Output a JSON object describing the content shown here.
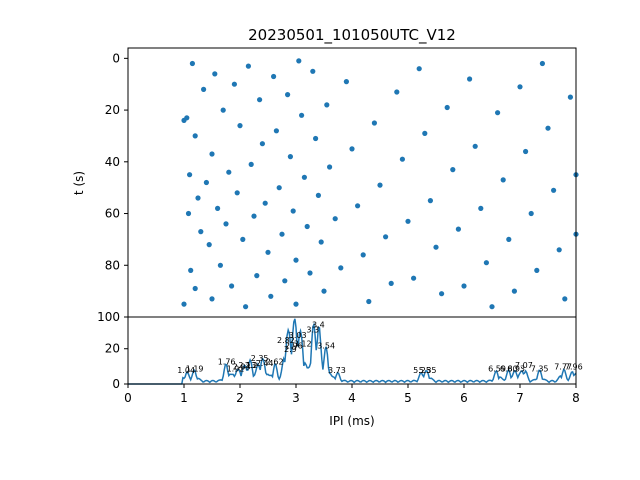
{
  "chart_data": [
    {
      "type": "scatter",
      "title": "20230501_101050UTC_V12",
      "xlabel": "",
      "ylabel": "t (s)",
      "xlim": [
        0,
        8
      ],
      "ylim": [
        100,
        -4
      ],
      "y_inverted": true,
      "y_ticks": [
        "0",
        "20",
        "40",
        "60",
        "80",
        "100"
      ],
      "x_ticks": [],
      "grid": false,
      "marker_color": "#1f77b4",
      "note_points": "approximate spike raster, IPI (ms) vs time (s)",
      "points": [
        [
          1.0,
          95.0
        ],
        [
          1.0,
          24.0
        ],
        [
          1.05,
          23.0
        ],
        [
          1.1,
          45.0
        ],
        [
          1.08,
          60.0
        ],
        [
          1.12,
          82.0
        ],
        [
          1.15,
          2.0
        ],
        [
          1.2,
          30.0
        ],
        [
          1.25,
          54.0
        ],
        [
          1.3,
          67.0
        ],
        [
          1.2,
          89.0
        ],
        [
          1.35,
          12.0
        ],
        [
          1.4,
          48.0
        ],
        [
          1.45,
          72.0
        ],
        [
          1.5,
          93.0
        ],
        [
          1.55,
          6.0
        ],
        [
          1.5,
          37.0
        ],
        [
          1.6,
          58.0
        ],
        [
          1.65,
          80.0
        ],
        [
          1.7,
          20.0
        ],
        [
          1.75,
          64.0
        ],
        [
          1.8,
          44.0
        ],
        [
          1.85,
          88.0
        ],
        [
          1.9,
          10.0
        ],
        [
          1.95,
          52.0
        ],
        [
          2.0,
          26.0
        ],
        [
          2.05,
          70.0
        ],
        [
          2.1,
          96.0
        ],
        [
          2.15,
          3.0
        ],
        [
          2.2,
          41.0
        ],
        [
          2.25,
          61.0
        ],
        [
          2.3,
          84.0
        ],
        [
          2.35,
          16.0
        ],
        [
          2.4,
          33.0
        ],
        [
          2.45,
          56.0
        ],
        [
          2.5,
          75.0
        ],
        [
          2.55,
          92.0
        ],
        [
          2.6,
          7.0
        ],
        [
          2.65,
          28.0
        ],
        [
          2.7,
          50.0
        ],
        [
          2.75,
          68.0
        ],
        [
          2.8,
          86.0
        ],
        [
          2.85,
          14.0
        ],
        [
          2.9,
          38.0
        ],
        [
          2.95,
          59.0
        ],
        [
          3.0,
          78.0
        ],
        [
          3.0,
          95.0
        ],
        [
          3.05,
          1.0
        ],
        [
          3.1,
          22.0
        ],
        [
          3.15,
          46.0
        ],
        [
          3.2,
          65.0
        ],
        [
          3.25,
          83.0
        ],
        [
          3.3,
          5.0
        ],
        [
          3.35,
          31.0
        ],
        [
          3.4,
          53.0
        ],
        [
          3.45,
          71.0
        ],
        [
          3.5,
          90.0
        ],
        [
          3.55,
          18.0
        ],
        [
          3.6,
          42.0
        ],
        [
          3.7,
          62.0
        ],
        [
          3.8,
          81.0
        ],
        [
          3.9,
          9.0
        ],
        [
          4.0,
          35.0
        ],
        [
          4.1,
          57.0
        ],
        [
          4.2,
          76.0
        ],
        [
          4.3,
          94.0
        ],
        [
          4.4,
          25.0
        ],
        [
          4.5,
          49.0
        ],
        [
          4.6,
          69.0
        ],
        [
          4.7,
          87.0
        ],
        [
          4.8,
          13.0
        ],
        [
          4.9,
          39.0
        ],
        [
          5.0,
          63.0
        ],
        [
          5.1,
          85.0
        ],
        [
          5.2,
          4.0
        ],
        [
          5.3,
          29.0
        ],
        [
          5.4,
          55.0
        ],
        [
          5.5,
          73.0
        ],
        [
          5.6,
          91.0
        ],
        [
          5.7,
          19.0
        ],
        [
          5.8,
          43.0
        ],
        [
          5.9,
          66.0
        ],
        [
          6.0,
          88.0
        ],
        [
          6.1,
          8.0
        ],
        [
          6.2,
          34.0
        ],
        [
          6.3,
          58.0
        ],
        [
          6.4,
          79.0
        ],
        [
          6.5,
          96.0
        ],
        [
          6.6,
          21.0
        ],
        [
          6.7,
          47.0
        ],
        [
          6.8,
          70.0
        ],
        [
          6.9,
          90.0
        ],
        [
          7.0,
          11.0
        ],
        [
          7.1,
          36.0
        ],
        [
          7.2,
          60.0
        ],
        [
          7.3,
          82.0
        ],
        [
          7.4,
          2.0
        ],
        [
          7.5,
          27.0
        ],
        [
          7.6,
          51.0
        ],
        [
          7.7,
          74.0
        ],
        [
          7.8,
          93.0
        ],
        [
          7.9,
          15.0
        ],
        [
          8.0,
          45.0
        ],
        [
          8.0,
          68.0
        ]
      ]
    },
    {
      "type": "line",
      "xlabel": "IPI (ms)",
      "ylabel": "",
      "xlim": [
        0,
        8
      ],
      "ylim": [
        0,
        38
      ],
      "x_ticks": [
        "0",
        "1",
        "2",
        "3",
        "4",
        "5",
        "6",
        "7",
        "8"
      ],
      "y_ticks": [
        "0",
        "20"
      ],
      "grid": false,
      "line_color": "#1f77b4",
      "peaks": [
        {
          "x": 1.04,
          "y": 5,
          "label": "1.04"
        },
        {
          "x": 1.19,
          "y": 6,
          "label": "1.19"
        },
        {
          "x": 1.76,
          "y": 10,
          "label": "1.76"
        },
        {
          "x": 1.92,
          "y": 6,
          "label": "1.92"
        },
        {
          "x": 2.03,
          "y": 7,
          "label": "2.03"
        },
        {
          "x": 2.13,
          "y": 8,
          "label": "2.13"
        },
        {
          "x": 2.2,
          "y": 8,
          "label": "2.2"
        },
        {
          "x": 2.35,
          "y": 12,
          "label": "2.35"
        },
        {
          "x": 2.44,
          "y": 9,
          "label": "2.44"
        },
        {
          "x": 2.62,
          "y": 10,
          "label": "2.62"
        },
        {
          "x": 2.82,
          "y": 22,
          "label": "2.82"
        },
        {
          "x": 2.9,
          "y": 17,
          "label": "2.9"
        },
        {
          "x": 2.96,
          "y": 19,
          "label": "2.96"
        },
        {
          "x": 3.03,
          "y": 25,
          "label": "3.03"
        },
        {
          "x": 3.12,
          "y": 20,
          "label": "3.12"
        },
        {
          "x": 3.3,
          "y": 28,
          "label": "3.3"
        },
        {
          "x": 3.4,
          "y": 31,
          "label": "3.4"
        },
        {
          "x": 3.54,
          "y": 19,
          "label": "3.54"
        },
        {
          "x": 3.73,
          "y": 5,
          "label": "3.73"
        },
        {
          "x": 5.25,
          "y": 5,
          "label": "5.25"
        },
        {
          "x": 5.35,
          "y": 5,
          "label": "5.35"
        },
        {
          "x": 6.59,
          "y": 6,
          "label": "6.59"
        },
        {
          "x": 6.8,
          "y": 6,
          "label": "6.80"
        },
        {
          "x": 6.93,
          "y": 6,
          "label": "6.93"
        },
        {
          "x": 7.07,
          "y": 8,
          "label": "7.07"
        },
        {
          "x": 7.35,
          "y": 6,
          "label": "7.35"
        },
        {
          "x": 7.77,
          "y": 7,
          "label": "7.77"
        },
        {
          "x": 7.96,
          "y": 7,
          "label": "7.96"
        }
      ]
    }
  ]
}
